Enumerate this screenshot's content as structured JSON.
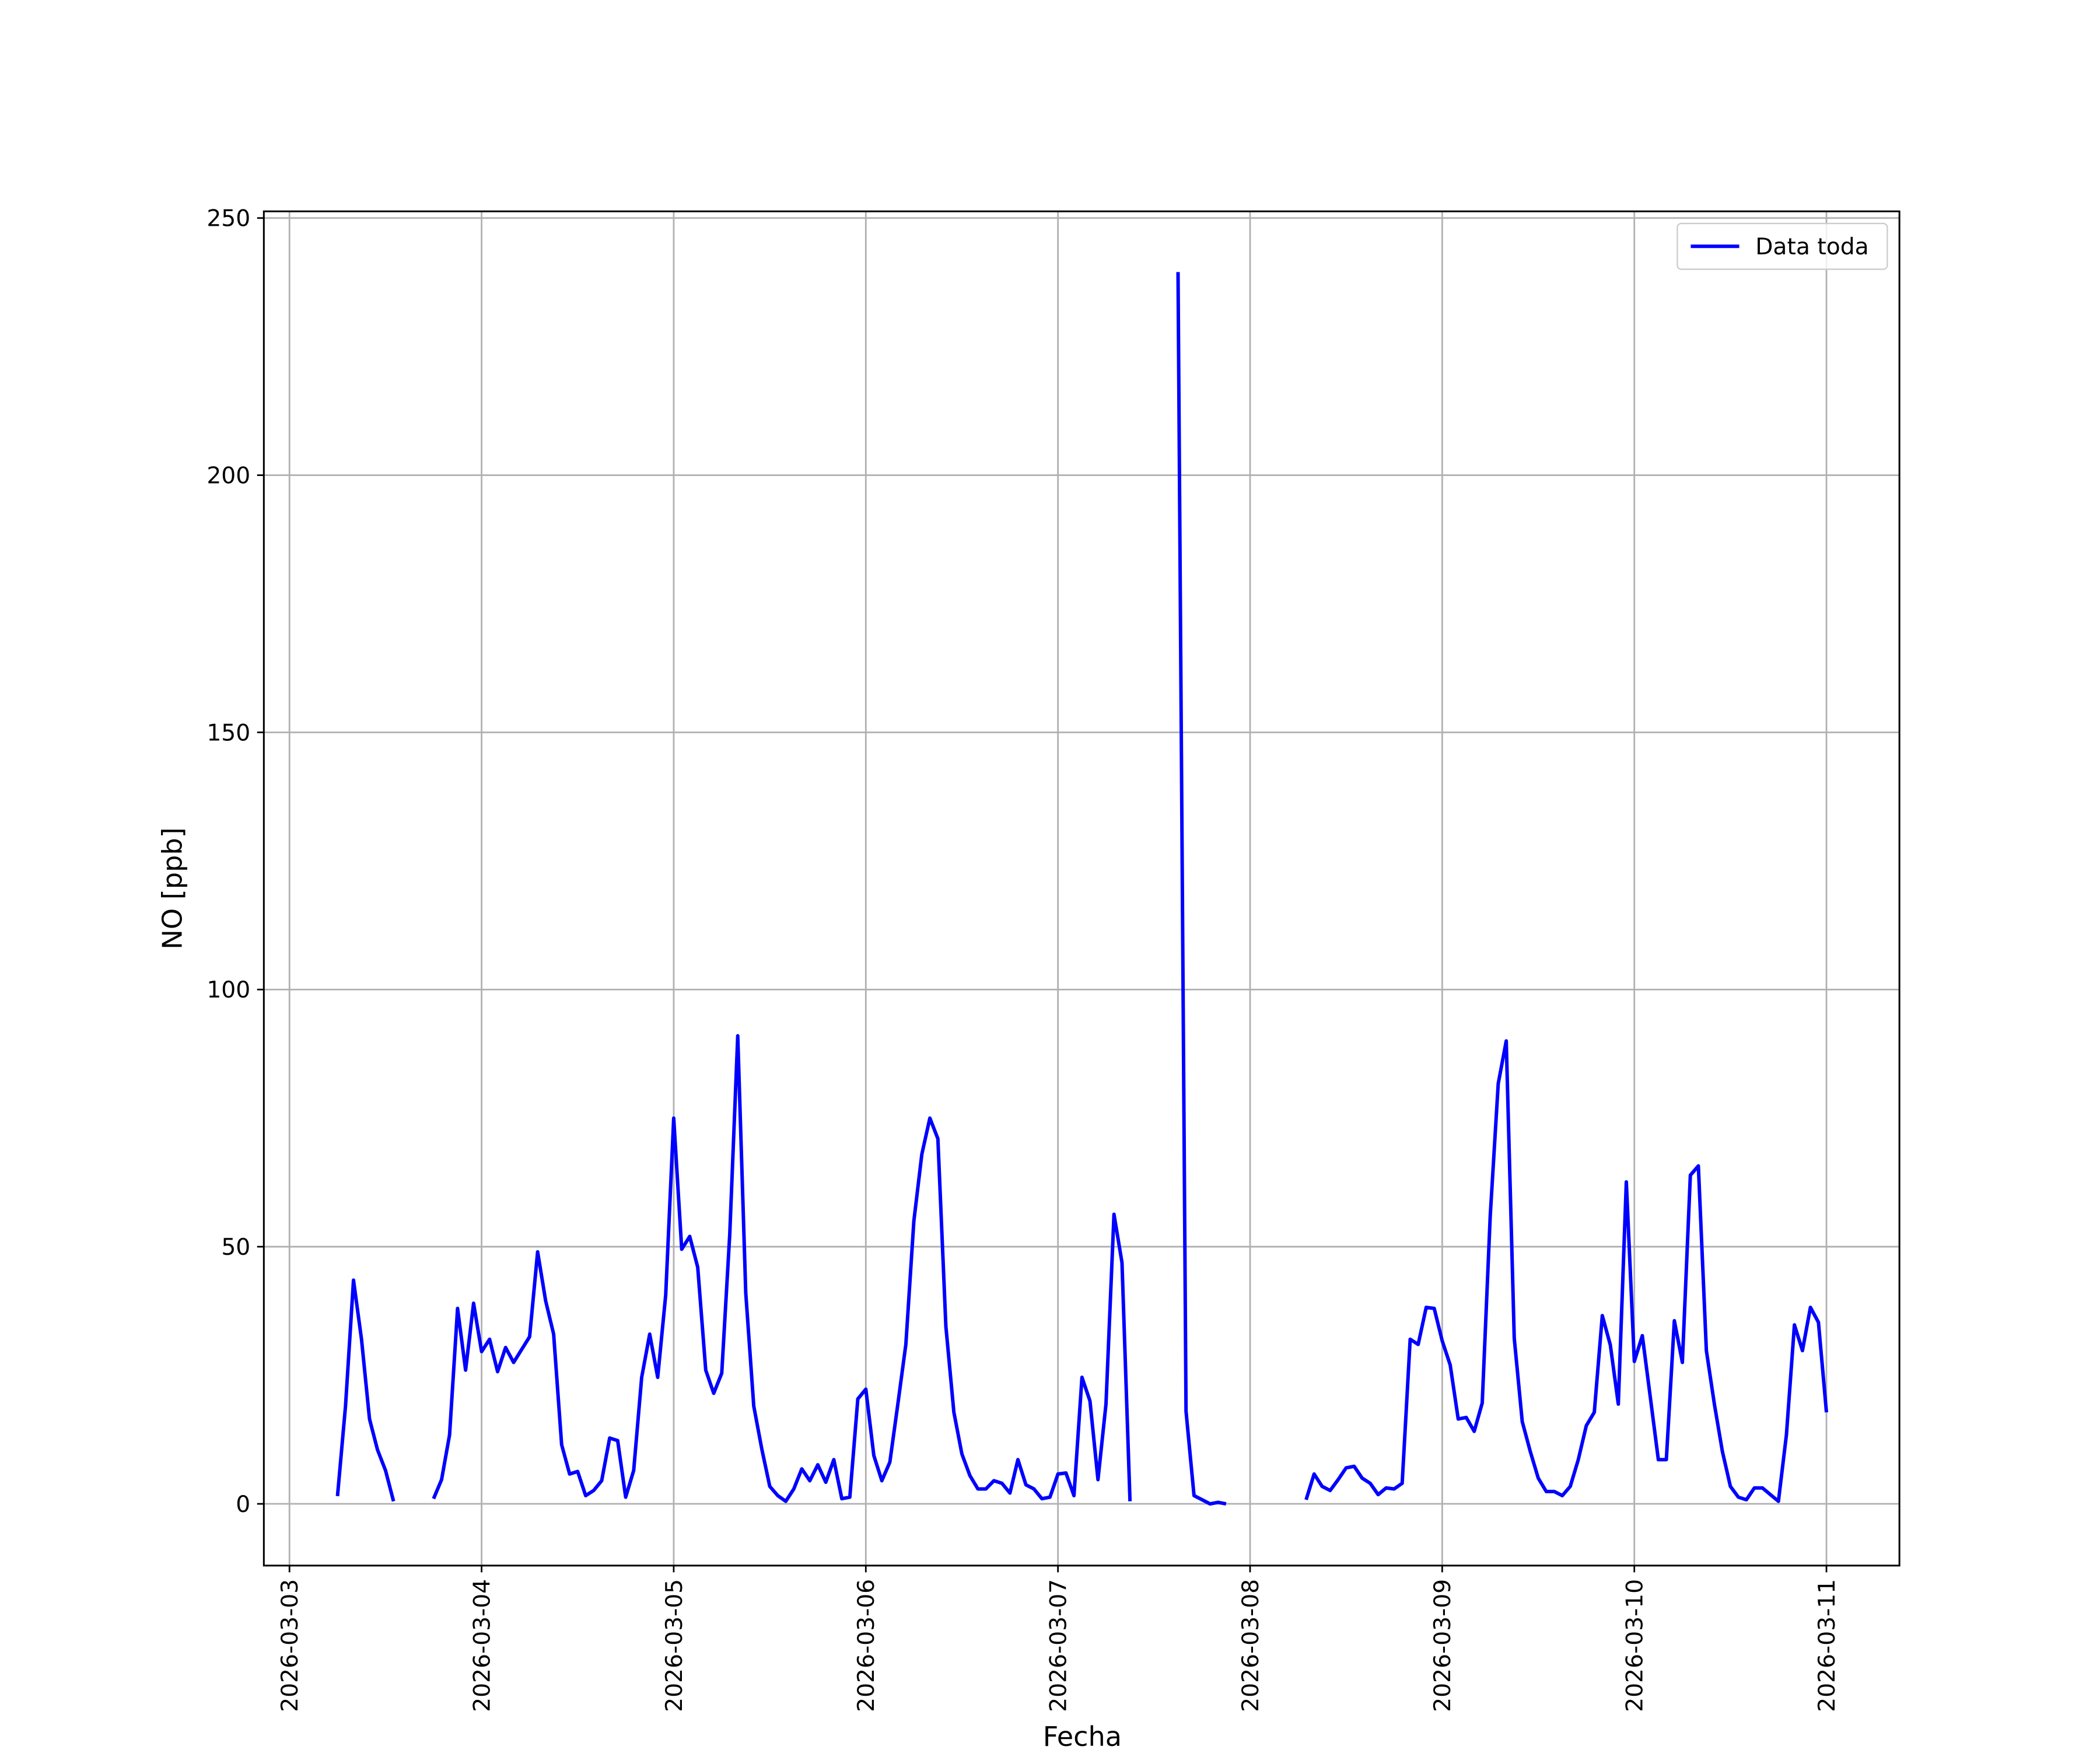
{
  "chart_data": {
    "type": "line",
    "x_label": "Fecha",
    "y_label": "NO [ppb]",
    "x": [
      "2026-03-03T06:00",
      "2026-03-03T07:00",
      "2026-03-03T08:00",
      "2026-03-03T09:00",
      "2026-03-03T10:00",
      "2026-03-03T11:00",
      "2026-03-03T12:00",
      "2026-03-03T13:00",
      "2026-03-03T14:00",
      "2026-03-03T18:00",
      "2026-03-03T19:00",
      "2026-03-03T20:00",
      "2026-03-03T21:00",
      "2026-03-03T22:00",
      "2026-03-03T23:00",
      "2026-03-04T00:00",
      "2026-03-04T01:00",
      "2026-03-04T02:00",
      "2026-03-04T03:00",
      "2026-03-04T04:00",
      "2026-03-04T05:00",
      "2026-03-04T06:00",
      "2026-03-04T07:00",
      "2026-03-04T08:00",
      "2026-03-04T09:00",
      "2026-03-04T10:00",
      "2026-03-04T11:00",
      "2026-03-04T12:00",
      "2026-03-04T13:00",
      "2026-03-04T14:00",
      "2026-03-04T15:00",
      "2026-03-04T16:00",
      "2026-03-04T17:00",
      "2026-03-04T18:00",
      "2026-03-04T19:00",
      "2026-03-04T20:00",
      "2026-03-04T21:00",
      "2026-03-04T22:00",
      "2026-03-04T23:00",
      "2026-03-05T00:00",
      "2026-03-05T01:00",
      "2026-03-05T02:00",
      "2026-03-05T03:00",
      "2026-03-05T04:00",
      "2026-03-05T05:00",
      "2026-03-05T06:00",
      "2026-03-05T07:00",
      "2026-03-05T08:00",
      "2026-03-05T09:00",
      "2026-03-05T10:00",
      "2026-03-05T11:00",
      "2026-03-05T12:00",
      "2026-03-05T13:00",
      "2026-03-05T14:00",
      "2026-03-05T15:00",
      "2026-03-05T16:00",
      "2026-03-05T17:00",
      "2026-03-05T18:00",
      "2026-03-05T19:00",
      "2026-03-05T20:00",
      "2026-03-05T21:00",
      "2026-03-05T22:00",
      "2026-03-05T23:00",
      "2026-03-06T00:00",
      "2026-03-06T01:00",
      "2026-03-06T02:00",
      "2026-03-06T03:00",
      "2026-03-06T04:00",
      "2026-03-06T05:00",
      "2026-03-06T06:00",
      "2026-03-06T07:00",
      "2026-03-06T08:00",
      "2026-03-06T09:00",
      "2026-03-06T10:00",
      "2026-03-06T11:00",
      "2026-03-06T12:00",
      "2026-03-06T13:00",
      "2026-03-06T14:00",
      "2026-03-06T15:00",
      "2026-03-06T16:00",
      "2026-03-06T17:00",
      "2026-03-06T18:00",
      "2026-03-06T19:00",
      "2026-03-06T20:00",
      "2026-03-06T21:00",
      "2026-03-06T22:00",
      "2026-03-06T23:00",
      "2026-03-07T00:00",
      "2026-03-07T01:00",
      "2026-03-07T02:00",
      "2026-03-07T03:00",
      "2026-03-07T04:00",
      "2026-03-07T05:00",
      "2026-03-07T06:00",
      "2026-03-07T07:00",
      "2026-03-07T08:00",
      "2026-03-07T09:00",
      "2026-03-07T10:00",
      "2026-03-07T15:00",
      "2026-03-07T16:00",
      "2026-03-07T17:00",
      "2026-03-07T18:00",
      "2026-03-07T19:00",
      "2026-03-07T20:00",
      "2026-03-07T21:00",
      "2026-03-07T22:00",
      "2026-03-08T07:00",
      "2026-03-08T08:00",
      "2026-03-08T09:00",
      "2026-03-08T10:00",
      "2026-03-08T11:00",
      "2026-03-08T12:00",
      "2026-03-08T13:00",
      "2026-03-08T14:00",
      "2026-03-08T15:00",
      "2026-03-08T16:00",
      "2026-03-08T17:00",
      "2026-03-08T18:00",
      "2026-03-08T19:00",
      "2026-03-08T20:00",
      "2026-03-08T21:00",
      "2026-03-08T22:00",
      "2026-03-08T23:00",
      "2026-03-09T00:00",
      "2026-03-09T01:00",
      "2026-03-09T02:00",
      "2026-03-09T03:00",
      "2026-03-09T04:00",
      "2026-03-09T05:00",
      "2026-03-09T06:00",
      "2026-03-09T07:00",
      "2026-03-09T08:00",
      "2026-03-09T09:00",
      "2026-03-09T10:00",
      "2026-03-09T11:00",
      "2026-03-09T12:00",
      "2026-03-09T13:00",
      "2026-03-09T14:00",
      "2026-03-09T15:00",
      "2026-03-09T16:00",
      "2026-03-09T17:00",
      "2026-03-09T18:00",
      "2026-03-09T19:00",
      "2026-03-09T20:00",
      "2026-03-09T21:00",
      "2026-03-09T22:00",
      "2026-03-09T23:00",
      "2026-03-10T00:00",
      "2026-03-10T01:00",
      "2026-03-10T02:00",
      "2026-03-10T03:00",
      "2026-03-10T04:00",
      "2026-03-10T05:00",
      "2026-03-10T06:00",
      "2026-03-10T07:00",
      "2026-03-10T08:00",
      "2026-03-10T09:00",
      "2026-03-10T10:00",
      "2026-03-10T11:00",
      "2026-03-10T12:00",
      "2026-03-10T13:00",
      "2026-03-10T14:00",
      "2026-03-10T15:00",
      "2026-03-10T16:00",
      "2026-03-10T17:00",
      "2026-03-10T18:00",
      "2026-03-10T19:00",
      "2026-03-10T20:00",
      "2026-03-10T21:00",
      "2026-03-10T22:00",
      "2026-03-10T23:00",
      "2026-03-11T00:00"
    ],
    "series": [
      {
        "name": "Data toda",
        "color": "#0000ff",
        "values": [
          1.5,
          19,
          43.5,
          32,
          16.5,
          10.5,
          6.5,
          0.5,
          null,
          1,
          4.7,
          13.4,
          38,
          26,
          39,
          29.6,
          32,
          25.7,
          30.4,
          27.5,
          30,
          32.5,
          49,
          39.5,
          33,
          11.5,
          5.8,
          6.3,
          1.6,
          2.6,
          4.5,
          12.8,
          12.3,
          1.3,
          6.5,
          24.6,
          33,
          24.6,
          40.6,
          75,
          49.5,
          52,
          46,
          26,
          21.5,
          25.4,
          52.4,
          91,
          41,
          19,
          10.7,
          3.4,
          1.6,
          0.5,
          2.9,
          6.8,
          4.5,
          7.6,
          4.2,
          8.6,
          1,
          1.3,
          20.4,
          22.3,
          9.4,
          4.5,
          8.1,
          19.4,
          31,
          55,
          68,
          75,
          71,
          34.5,
          17.8,
          9.7,
          5.5,
          2.9,
          2.9,
          4.5,
          4,
          2.1,
          8.6,
          3.7,
          2.9,
          1,
          1.3,
          5.8,
          6,
          1.6,
          24.6,
          20,
          4.7,
          19.4,
          56.3,
          46.9,
          0.5,
          null,
          239.5,
          18,
          1.6,
          0.8,
          0,
          0.3,
          0,
          null,
          0.8,
          5.8,
          3.4,
          2.6,
          4.7,
          7,
          7.3,
          5,
          4,
          1.8,
          3.1,
          2.9,
          4,
          32,
          31,
          38.2,
          38,
          31.7,
          27,
          16.5,
          16.8,
          14.1,
          19.6,
          56,
          81.7,
          90,
          32.2,
          16,
          10.2,
          5,
          2.4,
          2.4,
          1.6,
          3.4,
          8.6,
          15.2,
          17.8,
          36.6,
          30.9,
          19.4,
          62.6,
          27.7,
          32.7,
          20.7,
          8.6,
          8.6,
          35.6,
          27.5,
          63.9,
          65.7,
          29.8,
          19.4,
          10.2,
          3.4,
          1.3,
          0.8,
          3.1,
          3.1,
          1.8,
          0.5,
          13.4,
          34.8,
          29.8,
          38.2,
          35.3,
          17.8
        ]
      }
    ],
    "xlim": [
      "2026-03-02T20:48",
      "2026-03-11T09:07"
    ],
    "xticks": [
      "2026-03-03",
      "2026-03-04",
      "2026-03-05",
      "2026-03-06",
      "2026-03-07",
      "2026-03-08",
      "2026-03-09",
      "2026-03-10",
      "2026-03-11"
    ],
    "ylim": [
      -12,
      251.3
    ],
    "yticks": [
      0,
      50,
      100,
      150,
      200,
      250
    ],
    "grid": true,
    "legend": "upper right"
  }
}
